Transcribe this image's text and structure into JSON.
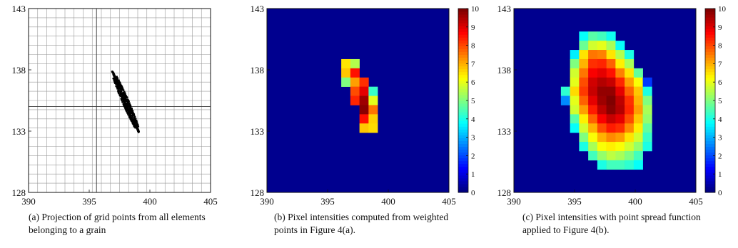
{
  "captions": {
    "a": "(a) Projection of grid points from all elements belonging to a grain",
    "b": "(b) Pixel intensities computed from weighted points in Figure 4(a).",
    "c": "(c) Pixel intensities with point spread function applied to Figure 4(b)."
  },
  "chart_data": [
    {
      "type": "scatter",
      "xlim": [
        390,
        405
      ],
      "ylim": [
        128,
        143
      ],
      "x_ticks": [
        390,
        395,
        400,
        405
      ],
      "y_ticks": [
        128,
        133,
        138,
        143
      ],
      "grid": true,
      "grid_step": 0.75,
      "crosshair": {
        "x": 395.6,
        "y": 135
      },
      "points_color": "#000000",
      "cloud": {
        "start": [
          396.9,
          137.9
        ],
        "end": [
          399.1,
          132.9
        ],
        "half_width": 0.22
      }
    },
    {
      "type": "heatmap",
      "xlim": [
        390,
        405
      ],
      "ylim": [
        128,
        143
      ],
      "x_ticks": [
        390,
        395,
        400,
        405
      ],
      "y_ticks": [
        128,
        133,
        138,
        143
      ],
      "background": "#00008f",
      "cell_size": 0.75,
      "colorbar": {
        "min": 0,
        "max": 10,
        "ticks": [
          0,
          1,
          2,
          3,
          4,
          5,
          6,
          7,
          8,
          9,
          10
        ]
      },
      "cells": [
        {
          "x": 396.5,
          "y": 138.5,
          "v": 6.5
        },
        {
          "x": 397.25,
          "y": 138.5,
          "v": 5.5
        },
        {
          "x": 396.5,
          "y": 137.75,
          "v": 6.8
        },
        {
          "x": 397.25,
          "y": 137.75,
          "v": 8.6
        },
        {
          "x": 396.5,
          "y": 137.0,
          "v": 5.0
        },
        {
          "x": 397.25,
          "y": 137.0,
          "v": 7.2
        },
        {
          "x": 398.0,
          "y": 137.0,
          "v": 8.3
        },
        {
          "x": 397.25,
          "y": 136.25,
          "v": 8.0
        },
        {
          "x": 398.0,
          "y": 136.25,
          "v": 9.0
        },
        {
          "x": 398.75,
          "y": 136.25,
          "v": 4.3
        },
        {
          "x": 397.25,
          "y": 135.5,
          "v": 8.4
        },
        {
          "x": 398.0,
          "y": 135.5,
          "v": 9.7
        },
        {
          "x": 398.75,
          "y": 135.5,
          "v": 6.0
        },
        {
          "x": 398.0,
          "y": 134.75,
          "v": 9.9
        },
        {
          "x": 398.75,
          "y": 134.75,
          "v": 7.6
        },
        {
          "x": 398.0,
          "y": 134.0,
          "v": 8.6
        },
        {
          "x": 398.75,
          "y": 134.0,
          "v": 6.7
        },
        {
          "x": 398.0,
          "y": 133.25,
          "v": 6.8
        },
        {
          "x": 398.75,
          "y": 133.25,
          "v": 6.6
        }
      ]
    },
    {
      "type": "heatmap",
      "xlim": [
        390,
        405
      ],
      "ylim": [
        128,
        143
      ],
      "x_ticks": [
        390,
        395,
        400,
        405
      ],
      "y_ticks": [
        128,
        133,
        138,
        143
      ],
      "background": "#00008f",
      "cell_size": 0.75,
      "colorbar": {
        "min": 0,
        "max": 10,
        "ticks": [
          0,
          1,
          2,
          3,
          4,
          5,
          6,
          7,
          8,
          9,
          10
        ]
      },
      "cells": [
        {
          "x": 395.75,
          "y": 140.75,
          "v": 3.8
        },
        {
          "x": 396.5,
          "y": 140.75,
          "v": 4.6
        },
        {
          "x": 397.25,
          "y": 140.75,
          "v": 4.4
        },
        {
          "x": 398.0,
          "y": 140.75,
          "v": 3.9
        },
        {
          "x": 395.75,
          "y": 140.0,
          "v": 4.8
        },
        {
          "x": 396.5,
          "y": 140.0,
          "v": 5.8
        },
        {
          "x": 397.25,
          "y": 140.0,
          "v": 6.0
        },
        {
          "x": 398.0,
          "y": 140.0,
          "v": 5.4
        },
        {
          "x": 398.75,
          "y": 140.0,
          "v": 3.8
        },
        {
          "x": 395.0,
          "y": 139.25,
          "v": 3.6
        },
        {
          "x": 395.75,
          "y": 139.25,
          "v": 6.5
        },
        {
          "x": 396.5,
          "y": 139.25,
          "v": 7.6
        },
        {
          "x": 397.25,
          "y": 139.25,
          "v": 7.5
        },
        {
          "x": 398.0,
          "y": 139.25,
          "v": 6.5
        },
        {
          "x": 398.75,
          "y": 139.25,
          "v": 5.5
        },
        {
          "x": 399.5,
          "y": 139.25,
          "v": 4.0
        },
        {
          "x": 395.0,
          "y": 138.5,
          "v": 5.0
        },
        {
          "x": 395.75,
          "y": 138.5,
          "v": 7.0
        },
        {
          "x": 396.5,
          "y": 138.5,
          "v": 8.3
        },
        {
          "x": 397.25,
          "y": 138.5,
          "v": 8.4
        },
        {
          "x": 398.0,
          "y": 138.5,
          "v": 7.8
        },
        {
          "x": 398.75,
          "y": 138.5,
          "v": 6.4
        },
        {
          "x": 399.5,
          "y": 138.5,
          "v": 5.4
        },
        {
          "x": 395.0,
          "y": 137.75,
          "v": 5.8
        },
        {
          "x": 395.75,
          "y": 137.75,
          "v": 7.6
        },
        {
          "x": 396.5,
          "y": 137.75,
          "v": 8.8
        },
        {
          "x": 397.25,
          "y": 137.75,
          "v": 9.0
        },
        {
          "x": 398.0,
          "y": 137.75,
          "v": 8.6
        },
        {
          "x": 398.75,
          "y": 137.75,
          "v": 7.5
        },
        {
          "x": 399.5,
          "y": 137.75,
          "v": 6.5
        },
        {
          "x": 400.25,
          "y": 137.75,
          "v": 4.7
        },
        {
          "x": 395.0,
          "y": 137.0,
          "v": 6.0
        },
        {
          "x": 395.75,
          "y": 137.0,
          "v": 8.0
        },
        {
          "x": 396.5,
          "y": 137.0,
          "v": 9.2
        },
        {
          "x": 397.25,
          "y": 137.0,
          "v": 9.5
        },
        {
          "x": 398.0,
          "y": 137.0,
          "v": 9.3
        },
        {
          "x": 398.75,
          "y": 137.0,
          "v": 8.4
        },
        {
          "x": 399.5,
          "y": 137.0,
          "v": 7.2
        },
        {
          "x": 400.25,
          "y": 137.0,
          "v": 6.2
        },
        {
          "x": 401.0,
          "y": 137.0,
          "v": 1.8
        },
        {
          "x": 394.25,
          "y": 136.25,
          "v": 4.2
        },
        {
          "x": 395.0,
          "y": 136.25,
          "v": 6.6
        },
        {
          "x": 395.75,
          "y": 136.25,
          "v": 8.2
        },
        {
          "x": 396.5,
          "y": 136.25,
          "v": 9.3
        },
        {
          "x": 397.25,
          "y": 136.25,
          "v": 9.8
        },
        {
          "x": 398.0,
          "y": 136.25,
          "v": 9.8
        },
        {
          "x": 398.75,
          "y": 136.25,
          "v": 9.0
        },
        {
          "x": 399.5,
          "y": 136.25,
          "v": 7.8
        },
        {
          "x": 400.25,
          "y": 136.25,
          "v": 6.8
        },
        {
          "x": 401.0,
          "y": 136.25,
          "v": 4.0
        },
        {
          "x": 394.25,
          "y": 135.5,
          "v": 2.6
        },
        {
          "x": 395.0,
          "y": 135.5,
          "v": 6.0
        },
        {
          "x": 395.75,
          "y": 135.5,
          "v": 7.8
        },
        {
          "x": 396.5,
          "y": 135.5,
          "v": 9.0
        },
        {
          "x": 397.25,
          "y": 135.5,
          "v": 9.7
        },
        {
          "x": 398.0,
          "y": 135.5,
          "v": 10.0
        },
        {
          "x": 398.75,
          "y": 135.5,
          "v": 9.4
        },
        {
          "x": 399.5,
          "y": 135.5,
          "v": 8.3
        },
        {
          "x": 400.25,
          "y": 135.5,
          "v": 7.0
        },
        {
          "x": 401.0,
          "y": 135.5,
          "v": 5.0
        },
        {
          "x": 395.0,
          "y": 134.75,
          "v": 5.8
        },
        {
          "x": 395.75,
          "y": 134.75,
          "v": 7.2
        },
        {
          "x": 396.5,
          "y": 134.75,
          "v": 8.5
        },
        {
          "x": 397.25,
          "y": 134.75,
          "v": 9.4
        },
        {
          "x": 398.0,
          "y": 134.75,
          "v": 9.9
        },
        {
          "x": 398.75,
          "y": 134.75,
          "v": 9.5
        },
        {
          "x": 399.5,
          "y": 134.75,
          "v": 8.4
        },
        {
          "x": 400.25,
          "y": 134.75,
          "v": 7.2
        },
        {
          "x": 401.0,
          "y": 134.75,
          "v": 5.4
        },
        {
          "x": 395.0,
          "y": 134.0,
          "v": 4.6
        },
        {
          "x": 395.75,
          "y": 134.0,
          "v": 6.4
        },
        {
          "x": 396.5,
          "y": 134.0,
          "v": 7.8
        },
        {
          "x": 397.25,
          "y": 134.0,
          "v": 8.8
        },
        {
          "x": 398.0,
          "y": 134.0,
          "v": 9.3
        },
        {
          "x": 398.75,
          "y": 134.0,
          "v": 9.0
        },
        {
          "x": 399.5,
          "y": 134.0,
          "v": 8.0
        },
        {
          "x": 400.25,
          "y": 134.0,
          "v": 6.8
        },
        {
          "x": 401.0,
          "y": 134.0,
          "v": 5.2
        },
        {
          "x": 395.0,
          "y": 133.25,
          "v": 3.8
        },
        {
          "x": 395.75,
          "y": 133.25,
          "v": 5.8
        },
        {
          "x": 396.5,
          "y": 133.25,
          "v": 7.0
        },
        {
          "x": 397.25,
          "y": 133.25,
          "v": 8.0
        },
        {
          "x": 398.0,
          "y": 133.25,
          "v": 8.5
        },
        {
          "x": 398.75,
          "y": 133.25,
          "v": 8.3
        },
        {
          "x": 399.5,
          "y": 133.25,
          "v": 7.4
        },
        {
          "x": 400.25,
          "y": 133.25,
          "v": 6.4
        },
        {
          "x": 401.0,
          "y": 133.25,
          "v": 4.7
        },
        {
          "x": 395.75,
          "y": 132.5,
          "v": 5.0
        },
        {
          "x": 396.5,
          "y": 132.5,
          "v": 6.2
        },
        {
          "x": 397.25,
          "y": 132.5,
          "v": 7.0
        },
        {
          "x": 398.0,
          "y": 132.5,
          "v": 7.4
        },
        {
          "x": 398.75,
          "y": 132.5,
          "v": 7.2
        },
        {
          "x": 399.5,
          "y": 132.5,
          "v": 6.5
        },
        {
          "x": 400.25,
          "y": 132.5,
          "v": 5.8
        },
        {
          "x": 401.0,
          "y": 132.5,
          "v": 4.3
        },
        {
          "x": 395.75,
          "y": 131.75,
          "v": 4.0
        },
        {
          "x": 396.5,
          "y": 131.75,
          "v": 5.4
        },
        {
          "x": 397.25,
          "y": 131.75,
          "v": 6.2
        },
        {
          "x": 398.0,
          "y": 131.75,
          "v": 6.4
        },
        {
          "x": 398.75,
          "y": 131.75,
          "v": 6.2
        },
        {
          "x": 399.5,
          "y": 131.75,
          "v": 5.8
        },
        {
          "x": 400.25,
          "y": 131.75,
          "v": 5.2
        },
        {
          "x": 401.0,
          "y": 131.75,
          "v": 4.0
        },
        {
          "x": 396.5,
          "y": 131.0,
          "v": 4.4
        },
        {
          "x": 397.25,
          "y": 131.0,
          "v": 5.2
        },
        {
          "x": 398.0,
          "y": 131.0,
          "v": 5.6
        },
        {
          "x": 398.75,
          "y": 131.0,
          "v": 5.4
        },
        {
          "x": 399.5,
          "y": 131.0,
          "v": 5.0
        },
        {
          "x": 400.25,
          "y": 131.0,
          "v": 4.4
        },
        {
          "x": 397.25,
          "y": 130.25,
          "v": 4.0
        },
        {
          "x": 398.0,
          "y": 130.25,
          "v": 4.4
        },
        {
          "x": 398.75,
          "y": 130.25,
          "v": 4.4
        },
        {
          "x": 399.5,
          "y": 130.25,
          "v": 4.2
        },
        {
          "x": 400.25,
          "y": 130.25,
          "v": 3.8
        }
      ]
    }
  ]
}
